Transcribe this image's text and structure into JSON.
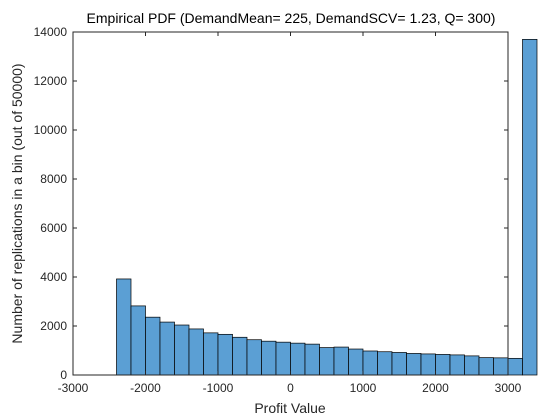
{
  "chart_data": {
    "type": "bar",
    "title": "Empirical PDF  (DemandMean= 225, DemandSCV= 1.23, Q= 300)",
    "xlabel": "Profit Value",
    "ylabel": "Number of replications in a bin (out of 50000)",
    "xlim": [
      -3000,
      3000
    ],
    "ylim": [
      0,
      14000
    ],
    "x_ticks": [
      -3000,
      -2000,
      -1000,
      0,
      1000,
      2000,
      3000
    ],
    "y_ticks": [
      0,
      2000,
      4000,
      6000,
      8000,
      10000,
      12000,
      14000
    ],
    "bin_start": -2400,
    "bin_width": 200,
    "values": [
      3920,
      2820,
      2360,
      2160,
      2040,
      1880,
      1720,
      1660,
      1540,
      1440,
      1380,
      1340,
      1300,
      1260,
      1120,
      1140,
      1060,
      980,
      950,
      920,
      880,
      860,
      840,
      820,
      780,
      710,
      700,
      680,
      13700
    ],
    "grid": false,
    "legend": "none",
    "bar_color": "#5b9fd4",
    "edge_color": "#000000"
  }
}
